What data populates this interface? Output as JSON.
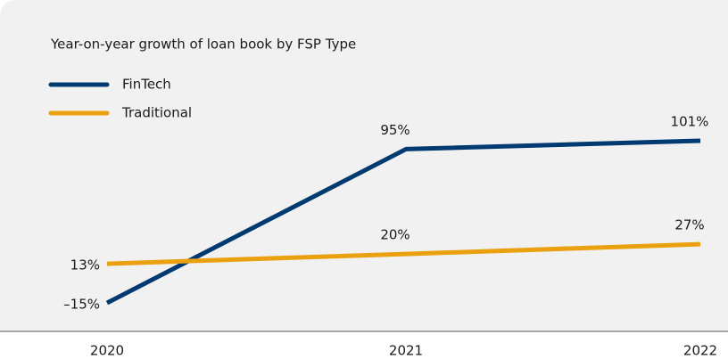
{
  "chart_data": {
    "type": "line",
    "title": "Year-on-year growth of loan book by FSP Type",
    "categories": [
      "2020",
      "2021",
      "2022"
    ],
    "series": [
      {
        "name": "FinTech",
        "color": "#003a70",
        "values": [
          -15,
          95,
          101
        ],
        "value_labels": [
          "–15%",
          "95%",
          "101%"
        ]
      },
      {
        "name": "Traditional",
        "color": "#eba10f",
        "values": [
          13,
          20,
          27
        ],
        "value_labels": [
          "13%",
          "20%",
          "27%"
        ]
      }
    ]
  }
}
